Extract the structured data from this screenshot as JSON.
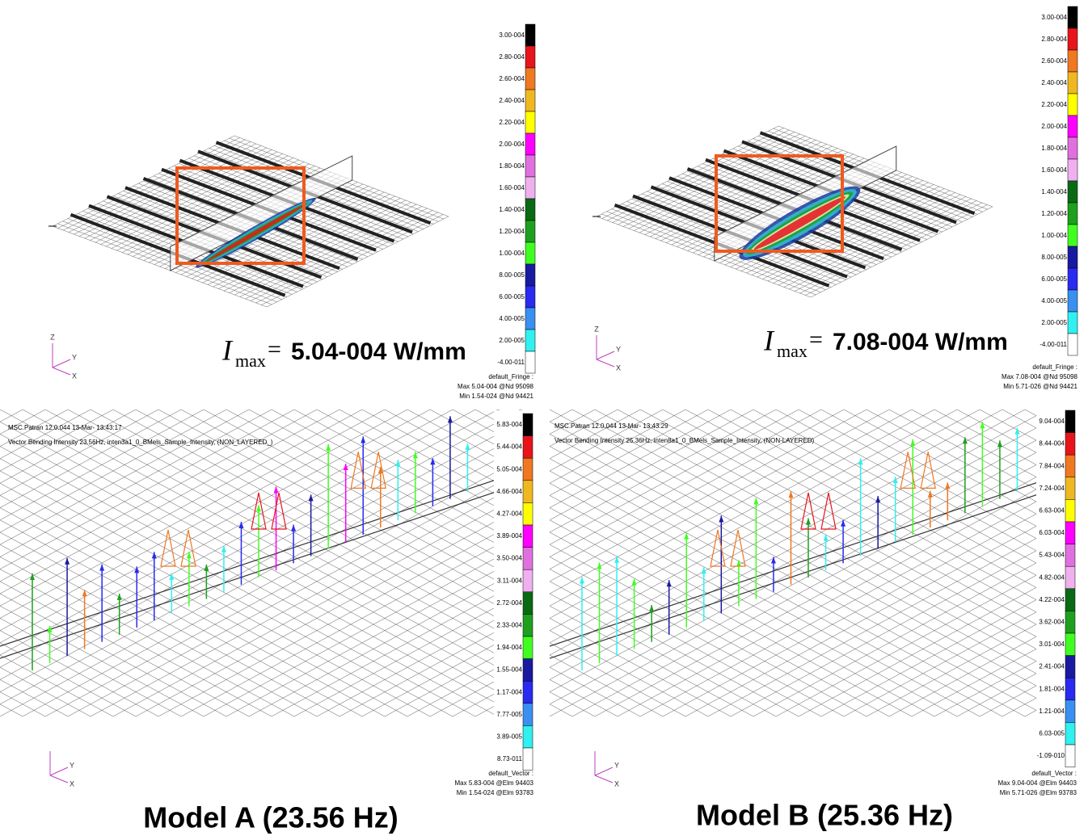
{
  "panels": [
    {
      "legend": [
        "3.00-004",
        "2.80-004",
        "2.60-004",
        "2.40-004",
        "2.20-004",
        "2.00-004",
        "1.80-004",
        "1.60-004",
        "1.40-004",
        "1.20-004",
        "1.00-004",
        "8.00-005",
        "6.00-005",
        "4.00-005",
        "2.00-005",
        "-4.00-011"
      ],
      "footer": [
        "default_Fringe :",
        "Max 5.04-004 @Nd 95098",
        "Min 1.54-024 @Nd 94421"
      ],
      "axes": [
        "Z",
        "Y",
        "X"
      ],
      "imax": {
        "symbol": "I",
        "subscript": "max",
        "equals": "=",
        "value": "5.04-004 W/mm"
      }
    },
    {
      "legend": [
        "3.00-004",
        "2.80-004",
        "2.60-004",
        "2.40-004",
        "2.20-004",
        "2.00-004",
        "1.80-004",
        "1.60-004",
        "1.40-004",
        "1.20-004",
        "1.00-004",
        "8.00-005",
        "6.00-005",
        "4.00-005",
        "2.00-005",
        "-4.00-011"
      ],
      "footer": [
        "default_Fringe :",
        "Max 7.08-004 @Nd 95098",
        "Min 5.71-026 @Nd 94421"
      ],
      "axes": [
        "Z",
        "Y",
        "X"
      ],
      "imax": {
        "symbol": "I",
        "subscript": "max",
        "equals": "=",
        "value": "7.08-004 W/mm"
      }
    },
    {
      "header": [
        "MSC.Patran 12.0.044 13-Mar-  13:43:17",
        "Vector Bending Intensity 23.56Hz, inten3a1_0_BMels_Sample_Intensity, (NON_LAYERED_)"
      ],
      "legend": [
        "5.83-004",
        "5.44-004",
        "5.05-004",
        "4.66-004",
        "4.27-004",
        "3.89-004",
        "3.50-004",
        "3.11-004",
        "2.72-004",
        "2.33-004",
        "1.94-004",
        "1.55-004",
        "1.17-004",
        "7.77-005",
        "3.89-005",
        "8.73-011"
      ],
      "footer": [
        "default_Vector :",
        "Max 5.83-004 @Elm 94403",
        "Min 1.54-024 @Elm 93783"
      ],
      "axes": [
        "Y",
        "X"
      ]
    },
    {
      "header": [
        "MSC.Patran 12.0.044 13-Mar-  13:43:29",
        "Vector Bending Intensity 25.36Hz, inten8a1_0_BMels_Sample_Intensity, (NON-LAYERED)"
      ],
      "legend": [
        "9.04-004",
        "8.44-004",
        "7.84-004",
        "7.24-004",
        "6.63-004",
        "6.03-004",
        "5.43-004",
        "4.82-004",
        "4.22-004",
        "3.62-004",
        "3.01-004",
        "2.41-004",
        "1.81-004",
        "1.21-004",
        "6.03-005",
        "-1.09-010"
      ],
      "footer": [
        "default_Vector :",
        "Max 9.04-004 @Elm 94403",
        "Min 5.71-026 @Elm 93783"
      ],
      "axes": [
        "Y",
        "X"
      ]
    }
  ],
  "captions": [
    "Model A (23.56 Hz)",
    "Model B (25.36 Hz)"
  ]
}
